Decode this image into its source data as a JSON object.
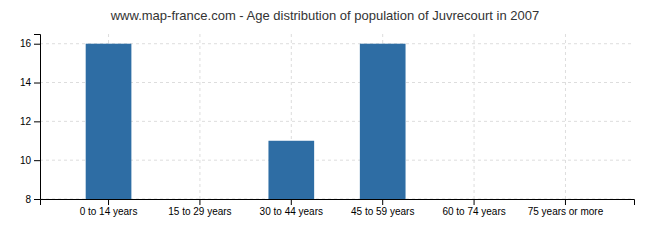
{
  "chart_data": {
    "type": "bar",
    "title": "www.map-france.com - Age distribution of population of Juvrecourt in 2007",
    "categories": [
      "0 to 14 years",
      "15 to 29 years",
      "30 to 44 years",
      "45 to 59 years",
      "60 to 74 years",
      "75 years or more"
    ],
    "values": [
      16,
      8,
      11,
      16,
      8,
      8
    ],
    "color": "#2e6da4",
    "ylim": [
      8,
      16.5
    ],
    "yticks": [
      8,
      10,
      12,
      14,
      16
    ],
    "grid": true
  }
}
